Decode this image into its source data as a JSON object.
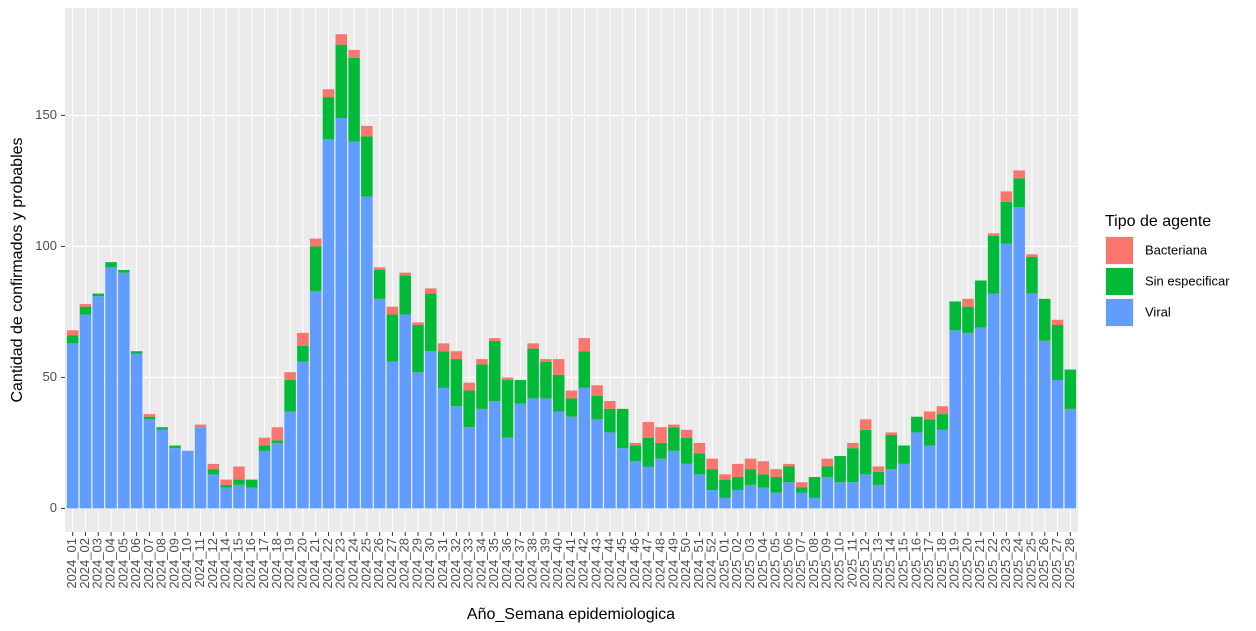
{
  "chart_data": {
    "type": "stacked_bar",
    "x_label": "Año_Semana epidemiologica",
    "y_label": "Cantidad de confirmados y probables",
    "legend_title": "Tipo de agente",
    "categories": [
      "2024_01",
      "2024_02",
      "2024_03",
      "2024_04",
      "2024_05",
      "2024_06",
      "2024_07",
      "2024_08",
      "2024_09",
      "2024_10",
      "2024_11",
      "2024_12",
      "2024_14",
      "2024_15",
      "2024_16",
      "2024_17",
      "2024_18",
      "2024_19",
      "2024_20",
      "2024_21",
      "2024_22",
      "2024_23",
      "2024_24",
      "2024_25",
      "2024_26",
      "2024_27",
      "2024_28",
      "2024_29",
      "2024_30",
      "2024_31",
      "2024_32",
      "2024_33",
      "2024_34",
      "2024_35",
      "2024_36",
      "2024_37",
      "2024_38",
      "2024_39",
      "2024_40",
      "2024_41",
      "2024_42",
      "2024_43",
      "2024_44",
      "2024_45",
      "2024_46",
      "2024_47",
      "2024_48",
      "2024_49",
      "2024_50",
      "2024_51",
      "2024_52",
      "2025_01",
      "2025_02",
      "2025_03",
      "2025_04",
      "2025_05",
      "2025_06",
      "2025_07",
      "2025_08",
      "2025_09",
      "2025_10",
      "2025_11",
      "2025_12",
      "2025_13",
      "2025_14",
      "2025_15",
      "2025_16",
      "2025_17",
      "2025_18",
      "2025_19",
      "2025_20",
      "2025_21",
      "2025_22",
      "2025_23",
      "2025_24",
      "2025_25",
      "2025_26",
      "2025_27",
      "2025_28"
    ],
    "series": [
      {
        "name": "Bacteriana",
        "color": "#F8766D",
        "values": [
          2,
          1,
          0,
          0,
          0,
          0,
          1,
          0,
          0,
          0,
          1,
          2,
          2,
          5,
          0,
          3,
          5,
          3,
          5,
          3,
          3,
          4,
          3,
          4,
          1,
          3,
          1,
          1,
          2,
          3,
          3,
          3,
          2,
          1,
          1,
          0,
          2,
          1,
          6,
          3,
          5,
          4,
          3,
          0,
          1,
          6,
          6,
          1,
          3,
          4,
          4,
          2,
          5,
          4,
          5,
          3,
          1,
          2,
          0,
          3,
          0,
          2,
          4,
          2,
          1,
          0,
          0,
          3,
          3,
          0,
          3,
          0,
          1,
          4,
          3,
          1,
          0,
          2,
          0
        ]
      },
      {
        "name": "Sin especificar",
        "color": "#00BA38",
        "values": [
          3,
          3,
          1,
          2,
          1,
          1,
          1,
          1,
          1,
          0,
          0,
          2,
          1,
          2,
          3,
          2,
          1,
          12,
          6,
          17,
          16,
          28,
          32,
          23,
          11,
          18,
          15,
          18,
          22,
          14,
          18,
          14,
          17,
          23,
          22,
          9,
          19,
          14,
          14,
          7,
          14,
          9,
          9,
          15,
          6,
          11,
          6,
          9,
          10,
          8,
          8,
          7,
          5,
          6,
          5,
          6,
          6,
          2,
          8,
          4,
          10,
          13,
          17,
          5,
          13,
          7,
          6,
          10,
          6,
          11,
          10,
          18,
          22,
          16,
          11,
          14,
          16,
          21,
          15
        ]
      },
      {
        "name": "Viral",
        "color": "#619CFF",
        "values": [
          63,
          74,
          81,
          92,
          90,
          59,
          34,
          30,
          23,
          22,
          31,
          13,
          8,
          9,
          8,
          22,
          25,
          37,
          56,
          83,
          141,
          149,
          140,
          119,
          80,
          56,
          74,
          52,
          60,
          46,
          39,
          31,
          38,
          41,
          27,
          40,
          42,
          42,
          37,
          35,
          46,
          34,
          29,
          23,
          18,
          16,
          19,
          22,
          17,
          13,
          7,
          4,
          7,
          9,
          8,
          6,
          10,
          6,
          4,
          12,
          10,
          10,
          13,
          9,
          15,
          17,
          29,
          24,
          30,
          68,
          67,
          69,
          82,
          101,
          115,
          82,
          64,
          49,
          38
        ]
      }
    ],
    "ylim": [
      -9,
      191
    ],
    "yticks": [
      0,
      50,
      100,
      150
    ],
    "grid": true
  }
}
